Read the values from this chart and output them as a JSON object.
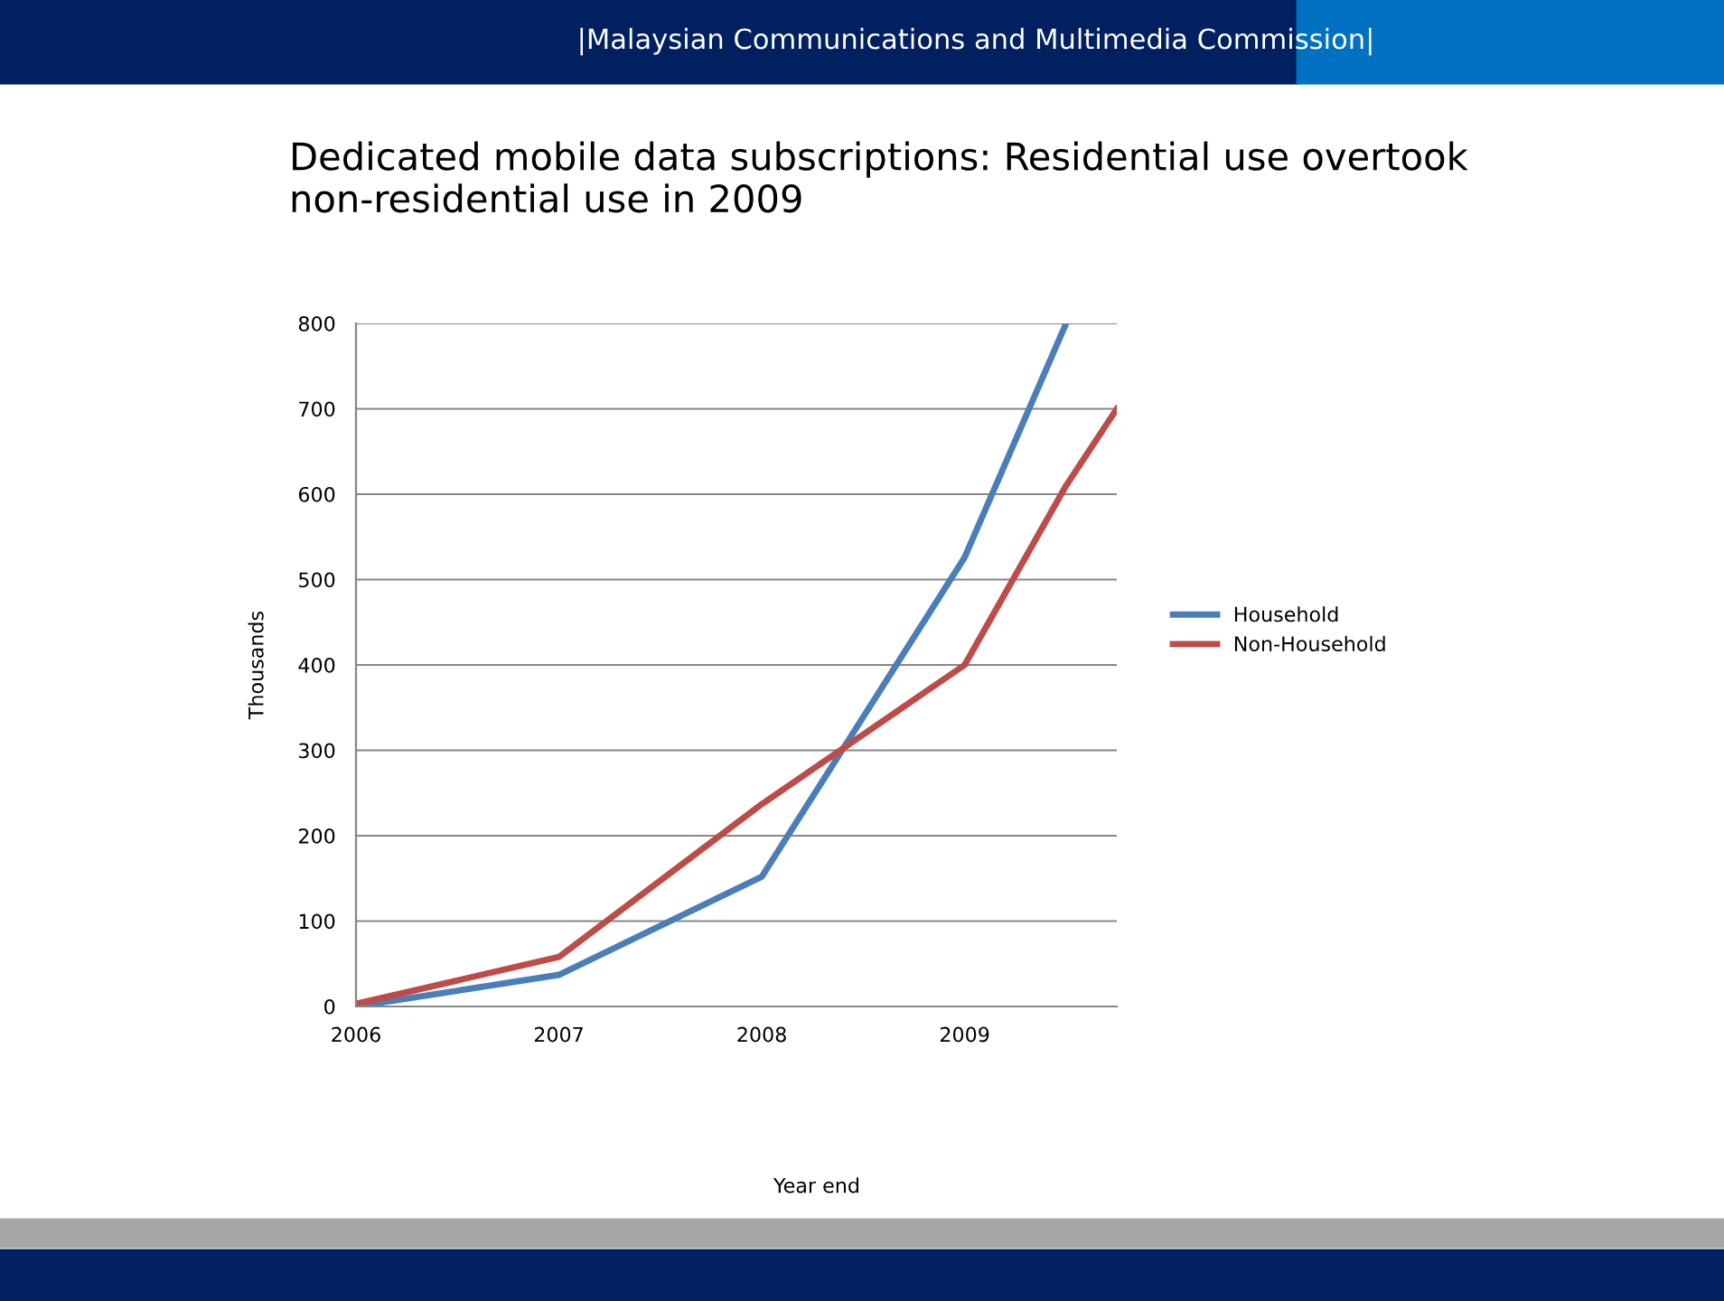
{
  "chart_data": {
    "type": "line",
    "title": "Dedicated mobile data subscriptions: Residential use overtook non-residential use in 2009",
    "ylabel": "Thousands",
    "annotations": [
      "|Malaysian Communications and Multimedia Commission|",
      "Year end"
    ],
    "series": [
      {
        "name": "Household",
        "color": "#4a7ebb",
        "x": [
          2006,
          2007,
          2008,
          2009,
          2009.5
        ],
        "values": [
          0,
          37,
          152,
          526,
          800
        ]
      },
      {
        "name": "Non-Household",
        "color": "#be4b48",
        "x": [
          2006,
          2007,
          2008,
          2009,
          2009.5,
          2009.75
        ],
        "values": [
          3,
          58,
          237,
          400,
          610,
          700
        ]
      }
    ],
    "xlim": [
      2006,
      2009.75
    ],
    "xticks": [
      2006,
      2007,
      2008,
      2009
    ],
    "ylim": [
      0,
      800
    ],
    "yticks": [
      0,
      100,
      200,
      300,
      400,
      500,
      600,
      700,
      800
    ],
    "grid": "y",
    "legend": "right",
    "marker": "none",
    "line_style": "solid"
  }
}
